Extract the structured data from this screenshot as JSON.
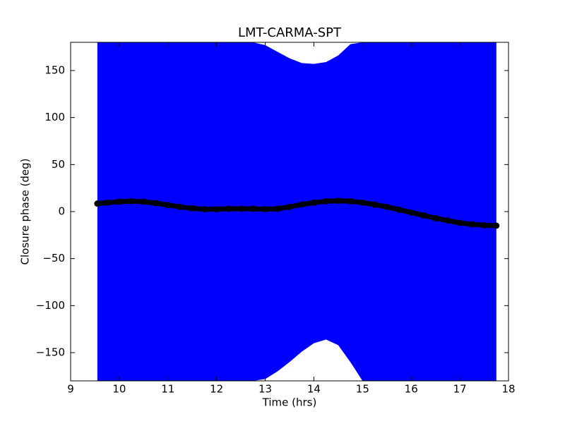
{
  "chart_data": {
    "type": "line_band",
    "title": "LMT-CARMA-SPT",
    "x_label": "Time (hrs)",
    "y_label": "Closure phase (deg)",
    "x": [
      9.55,
      9.75,
      10,
      10.25,
      10.5,
      10.75,
      11,
      11.25,
      11.5,
      11.75,
      12,
      12.25,
      12.5,
      12.75,
      13,
      13.25,
      13.5,
      13.75,
      14,
      14.25,
      14.5,
      14.75,
      15,
      15.25,
      15.5,
      15.75,
      16,
      16.25,
      16.5,
      16.75,
      17,
      17.25,
      17.5,
      17.75
    ],
    "values": [
      8.5,
      9.5,
      10.5,
      11,
      10.5,
      9,
      7,
      5,
      3.5,
      2.5,
      2.5,
      3,
      3,
      3,
      2.5,
      3,
      5,
      7.5,
      9.5,
      11,
      11.5,
      11,
      9.5,
      7.5,
      5,
      2,
      -1,
      -4,
      -7,
      -9.5,
      -12,
      -13.5,
      -14.5,
      -15
    ],
    "band_upper": [
      180,
      180,
      180,
      180,
      180,
      180,
      180,
      180,
      180,
      180,
      180,
      180,
      180,
      180,
      177,
      170,
      163,
      158,
      157,
      159,
      166,
      178,
      180,
      180,
      180,
      180,
      180,
      180,
      180,
      180,
      180,
      180,
      180,
      180
    ],
    "band_lower": [
      -180,
      -180,
      -180,
      -180,
      -180,
      -180,
      -180,
      -180,
      -180,
      -180,
      -180,
      -180,
      -180,
      -180,
      -178,
      -170,
      -160,
      -149,
      -140,
      -136,
      -142,
      -160,
      -180,
      -180,
      -180,
      -180,
      -180,
      -180,
      -180,
      -180,
      -180,
      -180,
      -180,
      -180
    ],
    "line_color": "#000000",
    "band_color": "#0000ff",
    "xlim": [
      9,
      18
    ],
    "xticks": [
      9,
      10,
      11,
      12,
      13,
      14,
      15,
      16,
      17,
      18
    ],
    "ylim": [
      -180,
      180
    ],
    "yticks": [
      {
        "value": -150,
        "label": "−150"
      },
      {
        "value": -100,
        "label": "−100"
      },
      {
        "value": -50,
        "label": "−50"
      },
      0,
      50,
      100,
      150
    ],
    "grid": false
  }
}
